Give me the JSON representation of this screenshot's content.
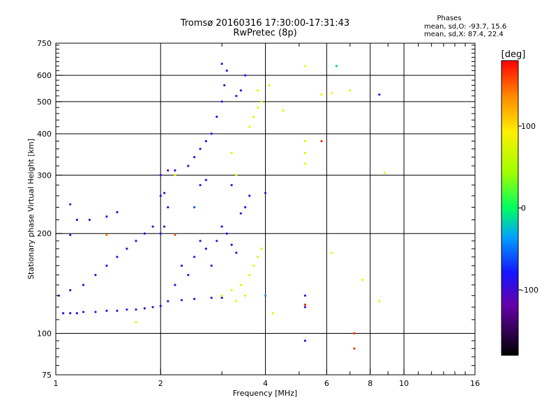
{
  "chart_data": {
    "type": "scatter",
    "title": "Tromsø 20160316 17:30:00-17:31:43",
    "subtitle": "RwPretec (8p)",
    "xlabel": "Frequency [MHz]",
    "ylabel": "Stationary phase Virtual Height [km]",
    "x_scale": "log",
    "y_scale": "log",
    "xlim": [
      1,
      16
    ],
    "ylim": [
      75,
      750
    ],
    "x_ticks": [
      1,
      2,
      4,
      6,
      8,
      10,
      16
    ],
    "x_tick_labels": [
      "1",
      "2",
      "4",
      "6",
      "8",
      "10",
      "16"
    ],
    "y_ticks": [
      75,
      100,
      200,
      300,
      400,
      500,
      600,
      750
    ],
    "y_tick_labels": [
      "75",
      "100",
      "200",
      "300",
      "400",
      "500",
      "600",
      "750"
    ],
    "grid": true,
    "colorbar": {
      "label": "[deg]",
      "range": [
        -180,
        180
      ],
      "ticks": [
        100,
        0,
        -100
      ],
      "tick_labels": [
        "100",
        "0",
        "-100"
      ]
    },
    "phases": {
      "title": "Phases",
      "line_o": "mean, sd,O: -93.7, 15.6",
      "line_x": "mean, sd,X: 87.4, 22.4"
    },
    "series": [
      {
        "mode": "O",
        "points": [
          [
            1.05,
            115,
            -95
          ],
          [
            1.1,
            115,
            -95
          ],
          [
            1.15,
            115,
            -95
          ],
          [
            1.2,
            116,
            -95
          ],
          [
            1.3,
            116,
            -95
          ],
          [
            1.4,
            117,
            -95
          ],
          [
            1.5,
            117,
            -95
          ],
          [
            1.6,
            118,
            -95
          ],
          [
            1.7,
            118,
            -95
          ],
          [
            1.8,
            119,
            -95
          ],
          [
            1.9,
            120,
            -95
          ],
          [
            2.0,
            121,
            -95
          ],
          [
            1.02,
            130,
            -95
          ],
          [
            1.1,
            135,
            -95
          ],
          [
            1.2,
            140,
            -95
          ],
          [
            1.3,
            150,
            -95
          ],
          [
            1.4,
            160,
            -95
          ],
          [
            1.5,
            170,
            -95
          ],
          [
            1.6,
            180,
            -95
          ],
          [
            1.7,
            190,
            -95
          ],
          [
            1.8,
            200,
            -95
          ],
          [
            1.9,
            210,
            -95
          ],
          [
            1.15,
            220,
            -95
          ],
          [
            1.25,
            220,
            -95
          ],
          [
            1.4,
            225,
            -95
          ],
          [
            1.5,
            232,
            -95
          ],
          [
            1.1,
            245,
            -95
          ],
          [
            1.1,
            198,
            -95
          ],
          [
            2.0,
            200,
            -95
          ],
          [
            2.05,
            210,
            -95
          ],
          [
            2.1,
            240,
            -95
          ],
          [
            2.0,
            260,
            -95
          ],
          [
            2.05,
            265,
            -95
          ],
          [
            2.0,
            300,
            -95
          ],
          [
            2.1,
            310,
            -95
          ],
          [
            2.2,
            310,
            -90
          ],
          [
            2.4,
            320,
            -90
          ],
          [
            2.5,
            340,
            -90
          ],
          [
            2.6,
            360,
            -90
          ],
          [
            2.7,
            380,
            -90
          ],
          [
            2.8,
            400,
            -90
          ],
          [
            2.9,
            450,
            -90
          ],
          [
            3.0,
            500,
            -90
          ],
          [
            3.05,
            560,
            -90
          ],
          [
            3.1,
            620,
            -90
          ],
          [
            3.0,
            650,
            -100
          ],
          [
            3.3,
            520,
            -90
          ],
          [
            3.4,
            540,
            -90
          ],
          [
            3.5,
            600,
            -90
          ],
          [
            3.4,
            230,
            -90
          ],
          [
            3.5,
            240,
            -90
          ],
          [
            2.6,
            280,
            -90
          ],
          [
            2.7,
            290,
            -90
          ],
          [
            3.2,
            280,
            -90
          ],
          [
            3.6,
            260,
            -90
          ],
          [
            4.0,
            265,
            -90
          ],
          [
            2.2,
            140,
            -90
          ],
          [
            2.3,
            160,
            -90
          ],
          [
            2.4,
            150,
            -90
          ],
          [
            2.5,
            170,
            -90
          ],
          [
            2.6,
            190,
            -90
          ],
          [
            2.7,
            180,
            -90
          ],
          [
            2.8,
            160,
            -90
          ],
          [
            2.9,
            190,
            -90
          ],
          [
            3.0,
            210,
            -90
          ],
          [
            3.1,
            200,
            -90
          ],
          [
            3.2,
            185,
            -90
          ],
          [
            3.3,
            175,
            -90
          ],
          [
            2.1,
            125,
            -95
          ],
          [
            2.3,
            126,
            -95
          ],
          [
            2.5,
            127,
            -95
          ],
          [
            2.8,
            128,
            -95
          ],
          [
            3.0,
            128,
            -95
          ],
          [
            5.2,
            95,
            -95
          ],
          [
            5.2,
            130,
            -95
          ],
          [
            5.2,
            120,
            -95
          ],
          [
            8.5,
            525,
            -100
          ]
        ]
      },
      {
        "mode": "X",
        "points": [
          [
            3.0,
            130,
            80
          ],
          [
            3.2,
            135,
            80
          ],
          [
            3.4,
            140,
            80
          ],
          [
            3.6,
            150,
            80
          ],
          [
            3.7,
            160,
            85
          ],
          [
            3.8,
            170,
            80
          ],
          [
            3.9,
            180,
            80
          ],
          [
            3.3,
            125,
            85
          ],
          [
            3.5,
            130,
            80
          ],
          [
            3.6,
            420,
            80
          ],
          [
            3.7,
            450,
            80
          ],
          [
            3.8,
            480,
            85
          ],
          [
            3.9,
            500,
            80
          ],
          [
            3.8,
            540,
            80
          ],
          [
            4.1,
            560,
            85
          ],
          [
            4.5,
            470,
            85
          ],
          [
            5.2,
            640,
            90
          ],
          [
            5.2,
            380,
            85
          ],
          [
            5.2,
            350,
            85
          ],
          [
            5.2,
            325,
            85
          ],
          [
            5.8,
            525,
            85
          ],
          [
            6.2,
            530,
            85
          ],
          [
            7.0,
            540,
            85
          ],
          [
            8.8,
            305,
            85
          ],
          [
            6.2,
            175,
            85
          ],
          [
            7.6,
            145,
            85
          ],
          [
            8.5,
            125,
            85
          ],
          [
            4.2,
            115,
            85
          ],
          [
            1.7,
            108,
            85
          ],
          [
            2.2,
            300,
            85
          ],
          [
            3.2,
            350,
            85
          ],
          [
            3.3,
            300,
            85
          ]
        ]
      },
      {
        "mode": "other",
        "points": [
          [
            1.4,
            198,
            140
          ],
          [
            2.2,
            198,
            150
          ],
          [
            5.8,
            380,
            165
          ],
          [
            7.2,
            100,
            165
          ],
          [
            7.2,
            90,
            165
          ],
          [
            6.4,
            640,
            -20
          ],
          [
            4.0,
            130,
            -40
          ],
          [
            2.5,
            240,
            -60
          ],
          [
            5.2,
            122,
            170
          ]
        ]
      }
    ]
  }
}
